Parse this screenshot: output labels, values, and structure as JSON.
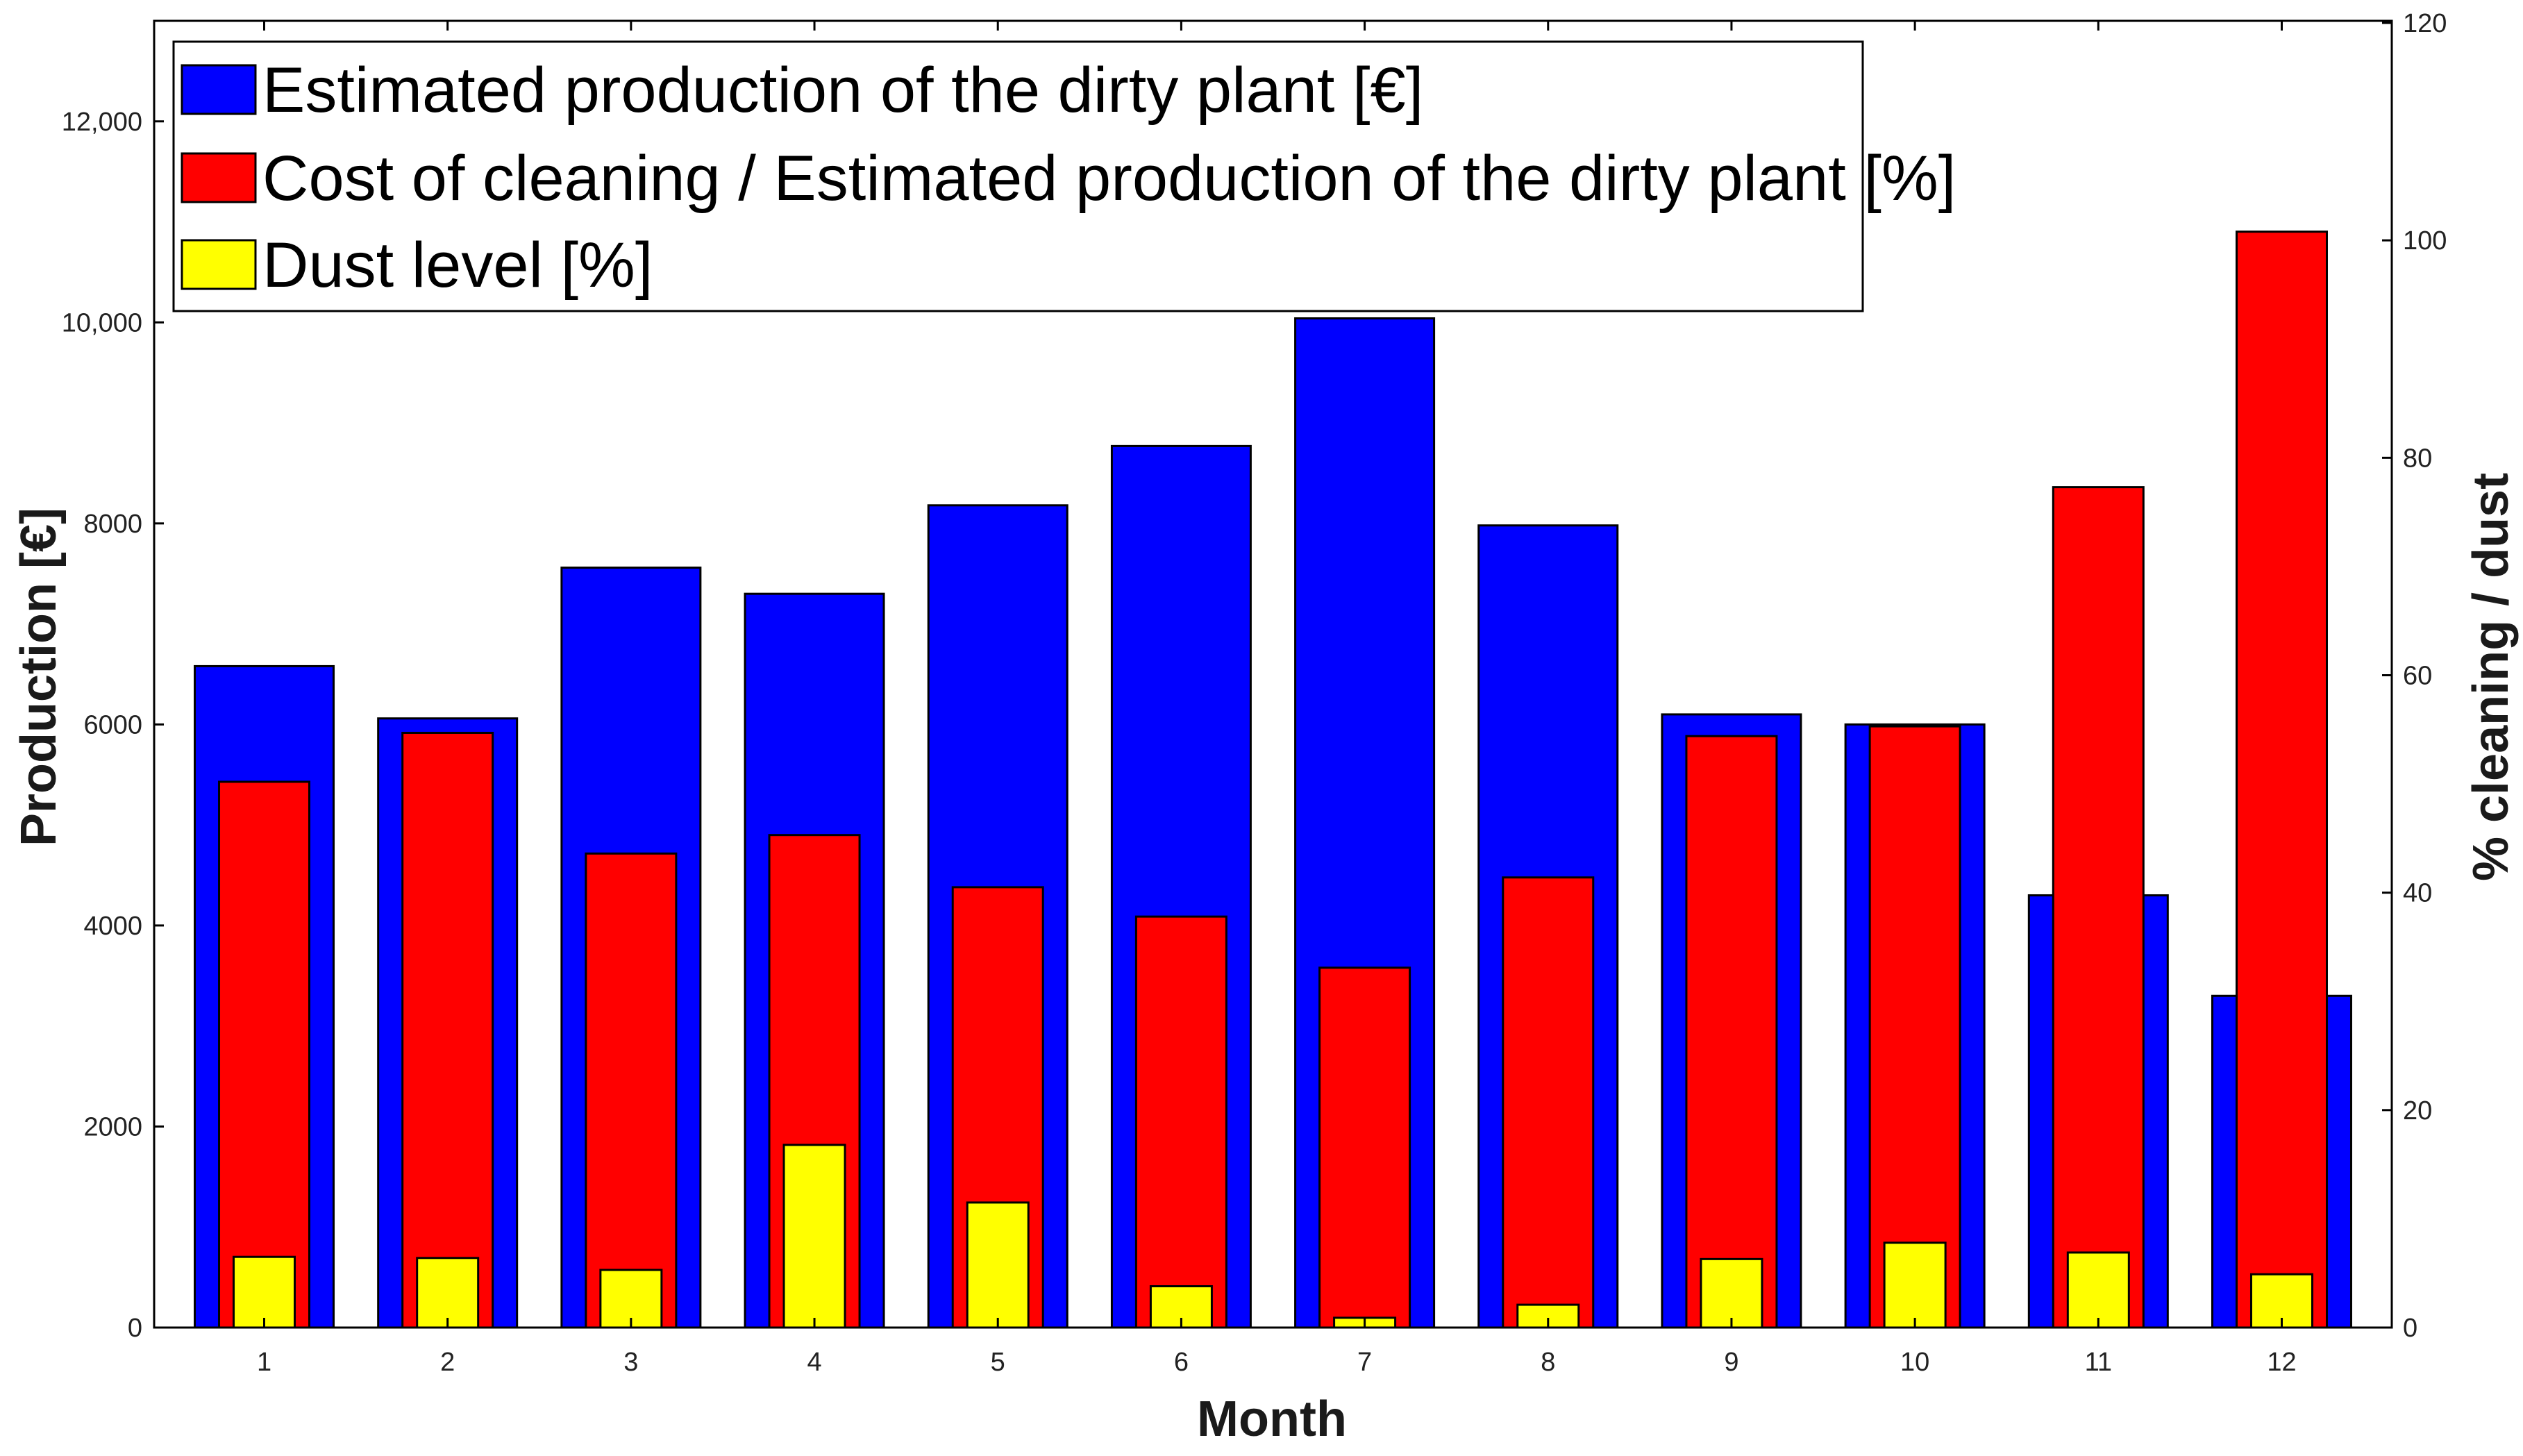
{
  "colors": {
    "production": "#0000ff",
    "cleaning": "#ff0000",
    "dust": "#ffff00",
    "axis": "#000000",
    "background": "#ffffff"
  },
  "chart_data": {
    "type": "bar",
    "title": "",
    "xlabel": "Month",
    "ylabel_left": "Production [€]",
    "ylabel_right": "% cleaning / dust",
    "categories": [
      "1",
      "2",
      "3",
      "4",
      "5",
      "6",
      "7",
      "8",
      "9",
      "10",
      "11",
      "12"
    ],
    "ylim_left": [
      0,
      13000
    ],
    "ylim_right": [
      0,
      120
    ],
    "yticks_left": [
      {
        "value": 0,
        "label": "0"
      },
      {
        "value": 2000,
        "label": "2000"
      },
      {
        "value": 4000,
        "label": "4000"
      },
      {
        "value": 6000,
        "label": "6000"
      },
      {
        "value": 8000,
        "label": "8000"
      },
      {
        "value": 10000,
        "label": "10,000"
      },
      {
        "value": 12000,
        "label": "12,000"
      }
    ],
    "yticks_right": [
      {
        "value": 0,
        "label": "0"
      },
      {
        "value": 20,
        "label": "20"
      },
      {
        "value": 40,
        "label": "40"
      },
      {
        "value": 60,
        "label": "60"
      },
      {
        "value": 80,
        "label": "80"
      },
      {
        "value": 100,
        "label": "100"
      },
      {
        "value": 120,
        "label": "120"
      }
    ],
    "series": [
      {
        "name": "Estimated production of the dirty plant [€]",
        "axis": "left",
        "values": [
          6580,
          6060,
          7560,
          7300,
          8180,
          8770,
          10040,
          7980,
          6100,
          6000,
          4300,
          3300
        ]
      },
      {
        "name": "Cost of cleaning / Estimated production of the dirty plant [%]",
        "axis": "right",
        "values": [
          50.2,
          54.7,
          43.6,
          45.3,
          40.5,
          37.8,
          33.1,
          41.4,
          54.4,
          55.3,
          77.3,
          100.8
        ]
      },
      {
        "name": "Dust level [%]",
        "axis": "right",
        "values": [
          6.5,
          6.4,
          5.3,
          16.8,
          11.5,
          3.8,
          0.9,
          2.1,
          6.3,
          7.8,
          6.9,
          4.9
        ]
      }
    ],
    "legend_position": "top-left",
    "grid": false
  }
}
